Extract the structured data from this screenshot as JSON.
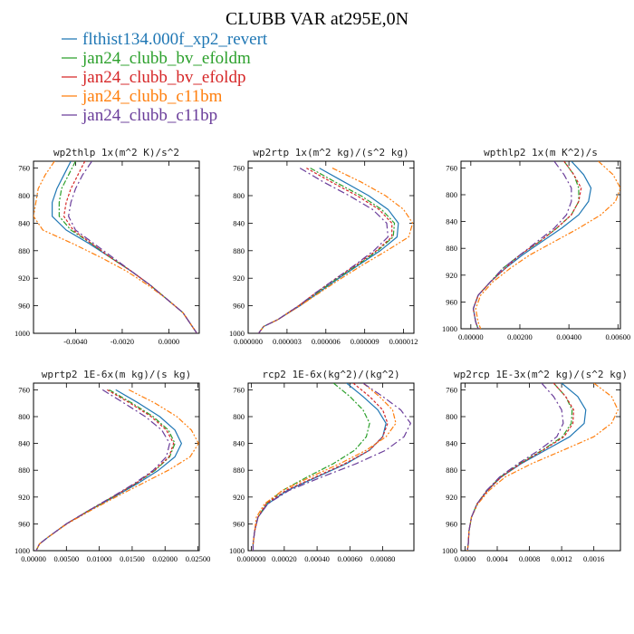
{
  "figure_title": "CLUBB VAR at295E,0N",
  "legend": [
    {
      "label": "flthist134.000f_xp2_revert",
      "color": "#1f77b4",
      "dash": ""
    },
    {
      "label": "jan24_clubb_bv_efoldm",
      "color": "#2ca02c",
      "dash": "6,2,2,2"
    },
    {
      "label": "jan24_clubb_bv_efoldp",
      "color": "#d62728",
      "dash": "3,2"
    },
    {
      "label": "jan24_clubb_c11bm",
      "color": "#ff7f0e",
      "dash": "6,2,2,2,2,2"
    },
    {
      "label": "jan24_clubb_c11bp",
      "color": "#6a3d9a",
      "dash": "8,3,2,3"
    }
  ],
  "chart_data": [
    {
      "type": "line",
      "title": "wp2thlp  1x(m^2 K)/s^2",
      "ylim": [
        1000,
        750
      ],
      "yticks": [
        760,
        800,
        840,
        880,
        920,
        960,
        1000
      ],
      "xlim": [
        -0.0058,
        0.0013
      ],
      "xticks": [
        -0.004,
        -0.002,
        0.0
      ],
      "xtick_labels": [
        "-0.0040",
        "-0.0020",
        "0.0000"
      ],
      "y": [
        750,
        770,
        790,
        810,
        830,
        850,
        870,
        890,
        910,
        930,
        950,
        970,
        990,
        1000
      ],
      "series": [
        {
          "name": "flthist134.000f_xp2_revert",
          "x": [
            -0.0042,
            -0.0045,
            -0.0048,
            -0.005,
            -0.005,
            -0.0044,
            -0.0034,
            -0.0025,
            -0.0016,
            -0.0008,
            -0.0001,
            0.0006,
            0.001,
            0.0012
          ]
        },
        {
          "name": "jan24_clubb_bv_efoldm",
          "x": [
            -0.004,
            -0.0043,
            -0.0046,
            -0.0047,
            -0.0047,
            -0.0042,
            -0.0033,
            -0.0025,
            -0.0016,
            -0.0008,
            -0.0001,
            0.0006,
            0.001,
            0.0012
          ]
        },
        {
          "name": "jan24_clubb_bv_efoldp",
          "x": [
            -0.0036,
            -0.0039,
            -0.0042,
            -0.0044,
            -0.0045,
            -0.0041,
            -0.0033,
            -0.0025,
            -0.0016,
            -0.0008,
            -0.0001,
            0.0006,
            0.001,
            0.0012
          ]
        },
        {
          "name": "jan24_clubb_c11bm",
          "x": [
            -0.0049,
            -0.0053,
            -0.0056,
            -0.0057,
            -0.0058,
            -0.0054,
            -0.0041,
            -0.0029,
            -0.0018,
            -0.0009,
            -0.0001,
            0.0006,
            0.001,
            0.0012
          ]
        },
        {
          "name": "jan24_clubb_c11bp",
          "x": [
            -0.0033,
            -0.0037,
            -0.004,
            -0.0042,
            -0.0043,
            -0.004,
            -0.0032,
            -0.0024,
            -0.0016,
            -0.0008,
            -0.0001,
            0.0006,
            0.001,
            0.0012
          ]
        }
      ]
    },
    {
      "type": "line",
      "title": "wp2rtp  1x(m^2 kg)/(s^2 kg)",
      "ylim": [
        1000,
        750
      ],
      "yticks": [
        760,
        800,
        840,
        880,
        920,
        960,
        1000
      ],
      "xlim": [
        0.0,
        1.28e-05
      ],
      "xticks": [
        0.0,
        3e-06,
        6e-06,
        9e-06,
        1.2e-05
      ],
      "xtick_labels": [
        "0.000000",
        "0.000003",
        "0.000006",
        "0.000009",
        "0.000012"
      ],
      "y": [
        760,
        780,
        800,
        820,
        840,
        860,
        880,
        900,
        920,
        940,
        960,
        980,
        990,
        1000
      ],
      "series": [
        {
          "name": "flthist134.000f_xp2_revert",
          "x": [
            5.5e-06,
            7.4e-06,
            9.3e-06,
            1.08e-05,
            1.16e-05,
            1.15e-05,
            1.02e-05,
            8.6e-06,
            7e-06,
            5.5e-06,
            4e-06,
            2.3e-06,
            1.2e-06,
            8e-07
          ]
        },
        {
          "name": "jan24_clubb_bv_efoldm",
          "x": [
            4.8e-06,
            6.7e-06,
            8.7e-06,
            1.03e-05,
            1.13e-05,
            1.12e-05,
            1e-05,
            8.5e-06,
            6.9e-06,
            5.4e-06,
            3.9e-06,
            2.3e-06,
            1.2e-06,
            8e-07
          ]
        },
        {
          "name": "jan24_clubb_bv_efoldp",
          "x": [
            4.5e-06,
            6.4e-06,
            8.4e-06,
            1.01e-05,
            1.11e-05,
            1.11e-05,
            9.9e-06,
            8.4e-06,
            6.8e-06,
            5.3e-06,
            3.9e-06,
            2.3e-06,
            1.2e-06,
            8e-07
          ]
        },
        {
          "name": "jan24_clubb_c11bm",
          "x": [
            6.5e-06,
            8.7e-06,
            1.06e-05,
            1.2e-05,
            1.27e-05,
            1.24e-05,
            1.07e-05,
            8.9e-06,
            7.2e-06,
            5.6e-06,
            4e-06,
            2.3e-06,
            1.2e-06,
            8e-07
          ]
        },
        {
          "name": "jan24_clubb_c11bp",
          "x": [
            4e-06,
            5.8e-06,
            7.8e-06,
            9.6e-06,
            1.07e-05,
            1.08e-05,
            9.7e-06,
            8.3e-06,
            6.8e-06,
            5.3e-06,
            3.9e-06,
            2.3e-06,
            1.2e-06,
            8e-07
          ]
        }
      ]
    },
    {
      "type": "line",
      "title": "wpthlp2  1x(m K^2)/s",
      "ylim": [
        1000,
        750
      ],
      "yticks": [
        760,
        800,
        840,
        880,
        920,
        960,
        1000
      ],
      "xlim": [
        -0.0004,
        0.0061
      ],
      "xticks": [
        0.0,
        0.002,
        0.004,
        0.006
      ],
      "xtick_labels": [
        "0.00000",
        "0.00200",
        "0.00400",
        "0.00600"
      ],
      "y": [
        750,
        770,
        790,
        810,
        830,
        850,
        870,
        890,
        910,
        930,
        950,
        970,
        990,
        1000
      ],
      "series": [
        {
          "name": "flthist134.000f_xp2_revert",
          "x": [
            0.0041,
            0.0046,
            0.0049,
            0.0048,
            0.0044,
            0.0037,
            0.0029,
            0.0021,
            0.0014,
            0.0008,
            0.0003,
            0.0001,
            0.0002,
            0.0003
          ]
        },
        {
          "name": "jan24_clubb_bv_efoldm",
          "x": [
            0.0038,
            0.0042,
            0.0044,
            0.0044,
            0.0041,
            0.0035,
            0.0028,
            0.002,
            0.0013,
            0.0008,
            0.0003,
            0.0001,
            0.0002,
            0.0003
          ]
        },
        {
          "name": "jan24_clubb_bv_efoldp",
          "x": [
            0.0038,
            0.0042,
            0.0045,
            0.0044,
            0.0041,
            0.0035,
            0.0028,
            0.002,
            0.0014,
            0.0008,
            0.0003,
            0.0001,
            0.0002,
            0.0003
          ]
        },
        {
          "name": "jan24_clubb_c11bm",
          "x": [
            0.0052,
            0.0058,
            0.0061,
            0.0059,
            0.0053,
            0.0044,
            0.0034,
            0.0024,
            0.0016,
            0.0009,
            0.0004,
            0.0002,
            0.0003,
            0.0004
          ]
        },
        {
          "name": "jan24_clubb_c11bp",
          "x": [
            0.0034,
            0.0038,
            0.0041,
            0.0041,
            0.0039,
            0.0034,
            0.0027,
            0.002,
            0.0013,
            0.0008,
            0.0003,
            0.0001,
            0.0002,
            0.0003
          ]
        }
      ]
    },
    {
      "type": "line",
      "title": "wprtp2  1E-6x(m kg)/(s kg)",
      "ylim": [
        1000,
        750
      ],
      "yticks": [
        760,
        800,
        840,
        880,
        920,
        960,
        1000
      ],
      "xlim": [
        0.0,
        0.0252
      ],
      "xticks": [
        0.0,
        0.005,
        0.01,
        0.015,
        0.02,
        0.025
      ],
      "xtick_labels": [
        "0.00000",
        "0.00500",
        "0.01000",
        "0.01500",
        "0.02000",
        "0.02500"
      ],
      "y": [
        760,
        780,
        800,
        820,
        840,
        860,
        880,
        900,
        920,
        940,
        960,
        980,
        990,
        1000
      ],
      "series": [
        {
          "name": "flthist134.000f_xp2_revert",
          "x": [
            0.0125,
            0.016,
            0.0192,
            0.0215,
            0.0225,
            0.0215,
            0.019,
            0.0158,
            0.0122,
            0.0085,
            0.005,
            0.0022,
            0.0009,
            0.0004
          ]
        },
        {
          "name": "jan24_clubb_bv_efoldm",
          "x": [
            0.0115,
            0.015,
            0.0182,
            0.0205,
            0.0215,
            0.0207,
            0.0185,
            0.0155,
            0.012,
            0.0084,
            0.005,
            0.0022,
            0.0009,
            0.0004
          ]
        },
        {
          "name": "jan24_clubb_bv_efoldp",
          "x": [
            0.0112,
            0.0147,
            0.0179,
            0.0202,
            0.0213,
            0.0206,
            0.0184,
            0.0155,
            0.012,
            0.0084,
            0.005,
            0.0022,
            0.0009,
            0.0004
          ]
        },
        {
          "name": "jan24_clubb_c11bm",
          "x": [
            0.0145,
            0.0185,
            0.0218,
            0.024,
            0.0251,
            0.0238,
            0.0205,
            0.0165,
            0.0125,
            0.0087,
            0.0051,
            0.0022,
            0.0009,
            0.0004
          ]
        },
        {
          "name": "jan24_clubb_c11bp",
          "x": [
            0.0105,
            0.0138,
            0.017,
            0.0195,
            0.0207,
            0.0202,
            0.0182,
            0.0153,
            0.0119,
            0.0084,
            0.005,
            0.0022,
            0.0009,
            0.0004
          ]
        }
      ]
    },
    {
      "type": "line",
      "title": "rcp2  1E-6x(kg^2)/(kg^2)",
      "ylim": [
        1000,
        750
      ],
      "yticks": [
        760,
        800,
        840,
        880,
        920,
        960,
        1000
      ],
      "xlim": [
        -2e-05,
        0.00099
      ],
      "xticks": [
        0.0,
        0.0002,
        0.0004,
        0.0006,
        0.0008
      ],
      "xtick_labels": [
        "0.000000",
        "0.00020",
        "0.00040",
        "0.00060",
        "0.00080"
      ],
      "y": [
        750,
        770,
        790,
        810,
        830,
        850,
        870,
        890,
        910,
        930,
        950,
        970,
        990,
        1000
      ],
      "series": [
        {
          "name": "flthist134.000f_xp2_revert",
          "x": [
            0.00058,
            0.00068,
            0.00077,
            0.00082,
            0.0008,
            0.00072,
            0.00058,
            0.0004,
            0.00022,
            0.0001,
            4e-05,
            2e-05,
            1e-05,
            1e-05
          ]
        },
        {
          "name": "jan24_clubb_bv_efoldm",
          "x": [
            0.0005,
            0.0006,
            0.00068,
            0.00072,
            0.0007,
            0.00063,
            0.0005,
            0.00034,
            0.00019,
            9e-05,
            4e-05,
            2e-05,
            1e-05,
            1e-05
          ]
        },
        {
          "name": "jan24_clubb_bv_efoldp",
          "x": [
            0.00062,
            0.00072,
            0.0008,
            0.00083,
            0.0008,
            0.00072,
            0.00057,
            0.00039,
            0.00021,
            9e-05,
            4e-05,
            2e-05,
            1e-05,
            1e-05
          ]
        },
        {
          "name": "jan24_clubb_c11bm",
          "x": [
            0.00068,
            0.00078,
            0.00086,
            0.00088,
            0.00082,
            0.0007,
            0.00054,
            0.00036,
            0.00019,
            8e-05,
            3e-05,
            2e-05,
            1e-05,
            1e-05
          ]
        },
        {
          "name": "jan24_clubb_c11bp",
          "x": [
            0.00068,
            0.0008,
            0.00091,
            0.00097,
            0.00093,
            0.00082,
            0.00064,
            0.00043,
            0.00023,
            0.0001,
            4e-05,
            2e-05,
            1e-05,
            1e-05
          ]
        }
      ]
    },
    {
      "type": "line",
      "title": "wp2rcp  1E-3x(m^2 kg)/(s^2 kg)",
      "ylim": [
        1000,
        750
      ],
      "yticks": [
        760,
        800,
        840,
        880,
        920,
        960,
        1000
      ],
      "xlim": [
        -5e-05,
        0.00193
      ],
      "xticks": [
        0.0,
        0.0004,
        0.0008,
        0.0012,
        0.0016
      ],
      "xtick_labels": [
        "0.0000",
        "0.0004",
        "0.0008",
        "0.0012",
        "0.0016"
      ],
      "y": [
        750,
        770,
        790,
        810,
        830,
        850,
        870,
        890,
        910,
        930,
        950,
        970,
        990,
        1000
      ],
      "series": [
        {
          "name": "flthist134.000f_xp2_revert",
          "x": [
            0.0012,
            0.0014,
            0.0015,
            0.00148,
            0.0013,
            0.001,
            0.0007,
            0.00045,
            0.00028,
            0.00015,
            8e-05,
            5e-05,
            4e-05,
            3e-05
          ]
        },
        {
          "name": "jan24_clubb_bv_efoldm",
          "x": [
            0.0011,
            0.00125,
            0.00133,
            0.00132,
            0.00121,
            0.00096,
            0.00068,
            0.00044,
            0.00027,
            0.00015,
            8e-05,
            5e-05,
            4e-05,
            3e-05
          ]
        },
        {
          "name": "jan24_clubb_bv_efoldp",
          "x": [
            0.0011,
            0.00125,
            0.00135,
            0.00134,
            0.00123,
            0.00097,
            0.00069,
            0.00045,
            0.00028,
            0.00015,
            8e-05,
            5e-05,
            4e-05,
            3e-05
          ]
        },
        {
          "name": "jan24_clubb_c11bm",
          "x": [
            0.0016,
            0.00182,
            0.0019,
            0.00182,
            0.0016,
            0.00122,
            0.00083,
            0.0005,
            0.0003,
            0.00016,
            8e-05,
            5e-05,
            4e-05,
            3e-05
          ]
        },
        {
          "name": "jan24_clubb_c11bp",
          "x": [
            0.00095,
            0.0011,
            0.0012,
            0.00122,
            0.00114,
            0.00092,
            0.00066,
            0.00043,
            0.00027,
            0.00015,
            8e-05,
            5e-05,
            4e-05,
            3e-05
          ]
        }
      ]
    }
  ]
}
